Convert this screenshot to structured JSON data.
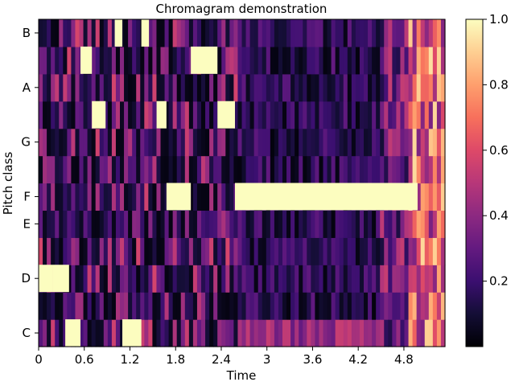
{
  "chart_data": {
    "type": "heatmap",
    "title": "Chromagram demonstration",
    "xlabel": "Time",
    "ylabel": "Pitch class",
    "x_range": [
      0,
      5.34
    ],
    "x_ticks": [
      0,
      0.6,
      1.2,
      1.8,
      2.4,
      3,
      3.6,
      4.2,
      4.8
    ],
    "x_tick_labels": [
      "0",
      "0.6",
      "1.2",
      "1.8",
      "2.4",
      "3",
      "3.6",
      "4.2",
      "4.8"
    ],
    "pitch_classes": [
      "C",
      "C#",
      "D",
      "D#",
      "E",
      "F",
      "F#",
      "G",
      "G#",
      "A",
      "A#",
      "B"
    ],
    "y_tick_labels": [
      "C",
      "D",
      "E",
      "F",
      "G",
      "A",
      "B"
    ],
    "y_tick_pitch_index": [
      0,
      2,
      4,
      5,
      7,
      9,
      11
    ],
    "colorscale": "magma",
    "colorbar": {
      "range": [
        0,
        1
      ],
      "ticks": [
        0.2,
        0.4,
        0.6,
        0.8,
        1.0
      ],
      "tick_labels": [
        "0.2",
        "0.4",
        "0.6",
        "0.8",
        "1.0"
      ]
    },
    "events": [
      {
        "pitch": "D",
        "t0": 0.0,
        "t1": 0.18,
        "value": 1.0
      },
      {
        "pitch": "D",
        "t0": 0.18,
        "t1": 0.4,
        "value": 1.0
      },
      {
        "pitch": "C",
        "t0": 0.35,
        "t1": 0.55,
        "value": 1.0
      },
      {
        "pitch": "A#",
        "t0": 0.55,
        "t1": 0.7,
        "value": 1.0
      },
      {
        "pitch": "G#",
        "t0": 0.7,
        "t1": 0.88,
        "value": 1.0
      },
      {
        "pitch": "B",
        "t0": 1.0,
        "t1": 1.1,
        "value": 1.0
      },
      {
        "pitch": "C",
        "t0": 1.1,
        "t1": 1.35,
        "value": 1.0
      },
      {
        "pitch": "B",
        "t0": 1.35,
        "t1": 1.45,
        "value": 1.0
      },
      {
        "pitch": "G#",
        "t0": 1.55,
        "t1": 1.68,
        "value": 1.0
      },
      {
        "pitch": "F",
        "t0": 1.68,
        "t1": 2.0,
        "value": 1.0
      },
      {
        "pitch": "A#",
        "t0": 2.0,
        "t1": 2.35,
        "value": 1.0
      },
      {
        "pitch": "G#",
        "t0": 2.35,
        "t1": 2.58,
        "value": 1.0
      },
      {
        "pitch": "F",
        "t0": 2.58,
        "t1": 4.98,
        "value": 1.0
      }
    ]
  }
}
